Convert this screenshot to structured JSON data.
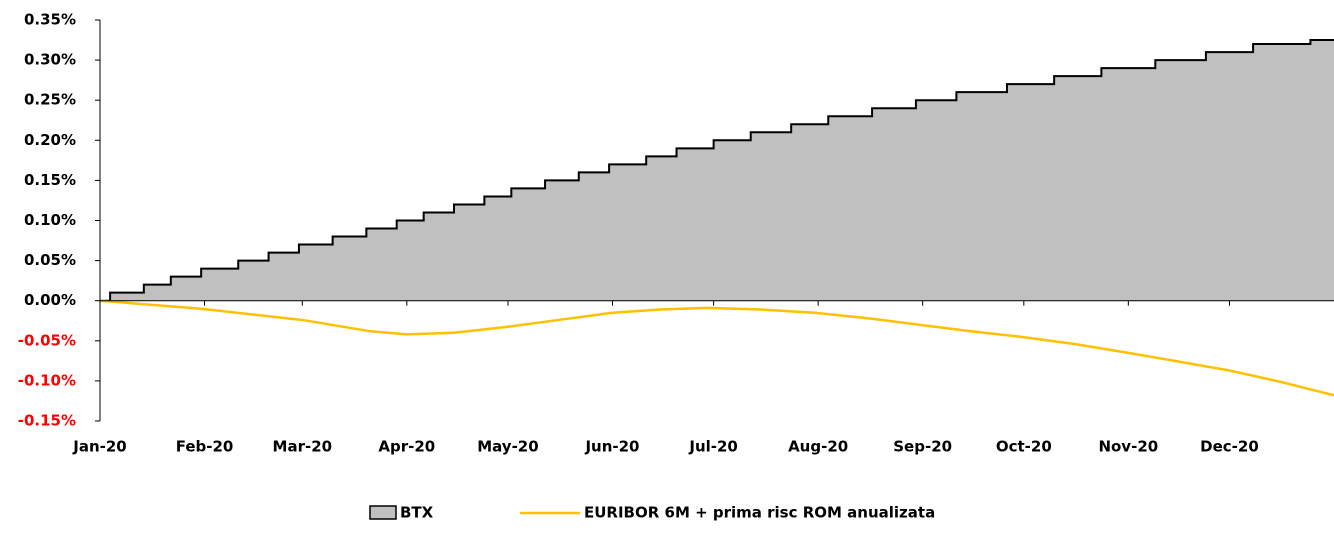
{
  "chart_data": {
    "type": "line",
    "xlim": [
      0,
      366
    ],
    "xticks": [
      {
        "value": 0,
        "label": "Jan-20"
      },
      {
        "value": 31,
        "label": "Feb-20"
      },
      {
        "value": 60,
        "label": "Mar-20"
      },
      {
        "value": 91,
        "label": "Apr-20"
      },
      {
        "value": 121,
        "label": "May-20"
      },
      {
        "value": 152,
        "label": "Jun-20"
      },
      {
        "value": 182,
        "label": "Jul-20"
      },
      {
        "value": 213,
        "label": "Aug-20"
      },
      {
        "value": 244,
        "label": "Sep-20"
      },
      {
        "value": 274,
        "label": "Oct-20"
      },
      {
        "value": 305,
        "label": "Nov-20"
      },
      {
        "value": 335,
        "label": "Dec-20"
      }
    ],
    "ylim": [
      -0.15,
      0.35
    ],
    "yticks": [
      {
        "value": -0.15,
        "label": "-0.15%"
      },
      {
        "value": -0.1,
        "label": "-0.10%"
      },
      {
        "value": -0.05,
        "label": "-0.05%"
      },
      {
        "value": 0,
        "label": "0.00%"
      },
      {
        "value": 0.05,
        "label": "0.05%"
      },
      {
        "value": 0.1,
        "label": "0.10%"
      },
      {
        "value": 0.15,
        "label": "0.15%"
      },
      {
        "value": 0.2,
        "label": "0.20%"
      },
      {
        "value": 0.25,
        "label": "0.25%"
      },
      {
        "value": 0.3,
        "label": "0.30%"
      },
      {
        "value": 0.35,
        "label": "0.35%"
      }
    ],
    "negative_tick_color": "#ff0000",
    "series": [
      {
        "name": "BTX",
        "style": "step-area",
        "color": "#c0c0c0",
        "x": [
          0,
          3,
          13,
          21,
          30,
          41,
          50,
          59,
          69,
          79,
          88,
          96,
          105,
          114,
          122,
          132,
          142,
          151,
          162,
          171,
          182,
          193,
          205,
          216,
          229,
          242,
          254,
          269,
          283,
          297,
          313,
          328,
          342,
          359
        ],
        "values": [
          0,
          0.01,
          0.02,
          0.03,
          0.04,
          0.05,
          0.06,
          0.07,
          0.08,
          0.09,
          0.1,
          0.11,
          0.12,
          0.13,
          0.14,
          0.15,
          0.16,
          0.17,
          0.18,
          0.19,
          0.2,
          0.21,
          0.22,
          0.23,
          0.24,
          0.25,
          0.26,
          0.27,
          0.28,
          0.29,
          0.3,
          0.31,
          0.32,
          0.325
        ]
      },
      {
        "name": "EURIBOR 6M + prima risc ROM anualizata",
        "style": "line",
        "color": "#ffc000",
        "x": [
          0,
          30,
          60,
          80,
          91,
          105,
          120,
          136,
          152,
          166,
          180,
          196,
          212,
          228,
          243,
          258,
          273,
          289,
          305,
          320,
          335,
          350,
          366
        ],
        "values": [
          0,
          -0.01,
          -0.024,
          -0.038,
          -0.042,
          -0.04,
          -0.033,
          -0.024,
          -0.015,
          -0.011,
          -0.009,
          -0.011,
          -0.015,
          -0.022,
          -0.03,
          -0.038,
          -0.045,
          -0.054,
          -0.065,
          -0.076,
          -0.087,
          -0.101,
          -0.118
        ]
      }
    ]
  }
}
